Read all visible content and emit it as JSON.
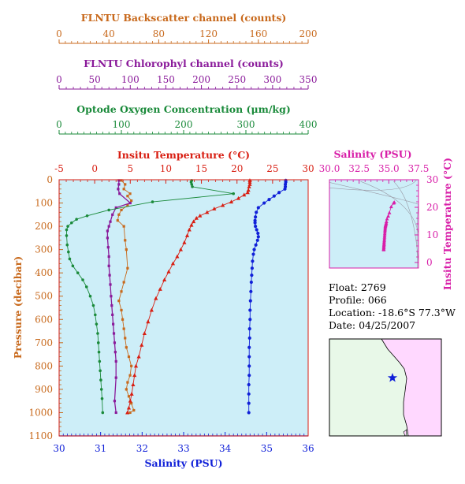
{
  "colors": {
    "backscatter": "#c8691c",
    "chlorophyll": "#8a1a9a",
    "oxygen": "#1a8a3a",
    "temperature": "#d81e12",
    "salinity": "#1020d8",
    "salinity_ts": "#d81ea8",
    "plot_bg": "#cdeef8",
    "ocean": "#e8f8e8",
    "land": "#ffd8ff",
    "float_marker": "#1020d8"
  },
  "info": {
    "float": "Float:  2769",
    "profile": "Profile:  066",
    "location": "Location:  -18.6°S  77.3°W",
    "date": "Date:  04/25/2007"
  },
  "footer_note": "",
  "chart_data": [
    {
      "type": "line",
      "name": "profile",
      "ylabel": "Pressure (decibar)",
      "ylim": [
        0,
        1100
      ],
      "yticks": [
        "0",
        "100",
        "200",
        "300",
        "400",
        "500",
        "600",
        "700",
        "800",
        "900",
        "1000",
        "1100"
      ],
      "axes": {
        "backscatter": {
          "title": "FLNTU Backscatter channel (counts)",
          "range": [
            0,
            200
          ],
          "ticks": [
            "0",
            "40",
            "80",
            "120",
            "160",
            "200"
          ]
        },
        "chlorophyll": {
          "title": "FLNTU Chlorophyl channel (counts)",
          "range": [
            0,
            350
          ],
          "ticks": [
            "0",
            "50",
            "100",
            "150",
            "200",
            "250",
            "300",
            "350"
          ]
        },
        "oxygen": {
          "title": "Optode Oxygen Concentration (μm/kg)",
          "range": [
            0,
            400
          ],
          "ticks": [
            "0",
            "100",
            "200",
            "300",
            "400"
          ]
        },
        "temperature": {
          "title": "Insitu Temperature (°C)",
          "range": [
            -5,
            30
          ],
          "ticks": [
            "-5",
            "0",
            "5",
            "10",
            "15",
            "20",
            "25",
            "30"
          ]
        },
        "salinity": {
          "title": "Salinity (PSU)",
          "range": [
            30,
            36
          ],
          "ticks": [
            "30",
            "31",
            "32",
            "33",
            "34",
            "35",
            "36"
          ]
        }
      },
      "series": [
        {
          "key": "temperature",
          "x": [
            21.8,
            21.8,
            21.8,
            21.7,
            21.6,
            21.5,
            21.0,
            20.2,
            19.2,
            18.0,
            16.8,
            15.8,
            14.8,
            14.3,
            13.9,
            13.6,
            13.3,
            13.0,
            12.6,
            12.1,
            11.6,
            11.0,
            10.4,
            9.8,
            9.2,
            8.6,
            8.0,
            7.5,
            7.0,
            6.6,
            6.2,
            5.8,
            5.6,
            5.4,
            5.2,
            5.0,
            4.8,
            4.6
          ],
          "y": [
            3,
            10,
            20,
            30,
            45,
            55,
            65,
            80,
            95,
            110,
            125,
            140,
            155,
            165,
            180,
            195,
            215,
            240,
            270,
            300,
            330,
            360,
            395,
            430,
            470,
            510,
            560,
            610,
            660,
            710,
            760,
            800,
            840,
            880,
            920,
            950,
            980,
            1000
          ]
        },
        {
          "key": "salinity",
          "x": [
            35.46,
            35.46,
            35.45,
            35.45,
            35.44,
            35.3,
            35.18,
            35.06,
            34.94,
            34.8,
            34.75,
            34.73,
            34.72,
            34.72,
            34.73,
            34.76,
            34.79,
            34.8,
            34.78,
            34.74,
            34.7,
            34.68,
            34.66,
            34.65,
            34.64,
            34.63,
            34.62,
            34.61,
            34.6,
            34.6,
            34.59,
            34.59,
            34.58,
            34.58,
            34.58,
            34.58,
            34.57,
            34.57,
            34.57,
            34.57
          ],
          "y": [
            3,
            10,
            20,
            30,
            40,
            55,
            70,
            85,
            100,
            120,
            140,
            160,
            175,
            185,
            200,
            215,
            230,
            245,
            260,
            280,
            300,
            320,
            350,
            380,
            410,
            440,
            480,
            520,
            560,
            600,
            640,
            680,
            720,
            760,
            800,
            840,
            880,
            920,
            960,
            1000
          ]
        },
        {
          "key": "oxygen",
          "x": [
            213,
            212,
            213,
            214,
            280,
            150,
            80,
            45,
            28,
            20,
            14,
            12,
            12,
            13,
            15,
            17,
            22,
            30,
            38,
            44,
            50,
            55,
            58,
            60,
            62,
            63,
            64,
            65,
            66,
            67,
            68,
            69,
            70
          ],
          "y": [
            3,
            10,
            20,
            30,
            60,
            95,
            130,
            155,
            170,
            185,
            200,
            215,
            240,
            280,
            310,
            340,
            370,
            400,
            430,
            460,
            500,
            540,
            580,
            620,
            660,
            700,
            740,
            780,
            820,
            860,
            900,
            940,
            1000
          ]
        },
        {
          "key": "chlorophyll",
          "x": [
            84,
            84,
            83,
            85,
            100,
            80,
            75,
            72,
            70,
            68,
            68,
            69,
            70,
            70,
            71,
            72,
            73,
            74,
            75,
            76,
            77,
            78,
            79,
            80,
            80,
            78,
            80
          ],
          "y": [
            3,
            20,
            40,
            60,
            100,
            120,
            150,
            180,
            200,
            220,
            250,
            290,
            330,
            370,
            410,
            450,
            500,
            540,
            580,
            620,
            660,
            700,
            740,
            780,
            850,
            950,
            1000
          ]
        },
        {
          "key": "backscatter",
          "x": [
            50,
            53,
            52,
            57,
            55,
            58,
            55,
            50,
            48,
            47,
            52,
            53,
            54,
            55,
            52,
            50,
            48,
            50,
            51,
            52,
            53,
            54,
            56,
            58,
            57,
            55,
            54,
            56,
            58,
            60,
            57
          ],
          "y": [
            3,
            20,
            40,
            60,
            70,
            90,
            110,
            130,
            150,
            175,
            200,
            260,
            300,
            380,
            440,
            480,
            520,
            560,
            600,
            640,
            680,
            720,
            760,
            800,
            840,
            870,
            900,
            930,
            960,
            990,
            1000
          ]
        }
      ]
    },
    {
      "type": "scatter",
      "name": "ts-diagram",
      "xlabel": "Salinity (PSU)",
      "ylabel": "Insitu Temperature (°C)",
      "xlim": [
        30,
        37.5
      ],
      "ylim": [
        -2,
        30
      ],
      "xticks": [
        "30.0",
        "32.5",
        "35.0",
        "37.5"
      ],
      "yticks": [
        "0",
        "10",
        "20",
        "30"
      ],
      "x": [
        35.46,
        35.4,
        35.2,
        35.05,
        34.95,
        34.85,
        34.8,
        34.78,
        34.76,
        34.74,
        34.72,
        34.71,
        34.7,
        34.69,
        34.68,
        34.67,
        34.66,
        34.65,
        34.64,
        34.63,
        34.62,
        34.61,
        34.6,
        34.6,
        34.59,
        34.58,
        34.58,
        34.57,
        34.57,
        34.57
      ],
      "y": [
        21.8,
        21.5,
        20.2,
        18.0,
        16.8,
        15.8,
        14.8,
        14.3,
        13.9,
        13.6,
        13.3,
        13.0,
        12.6,
        12.1,
        11.6,
        11.0,
        10.4,
        9.8,
        9.2,
        8.6,
        8.0,
        7.5,
        7.0,
        6.6,
        6.2,
        5.8,
        5.4,
        5.0,
        4.8,
        4.6
      ]
    }
  ]
}
